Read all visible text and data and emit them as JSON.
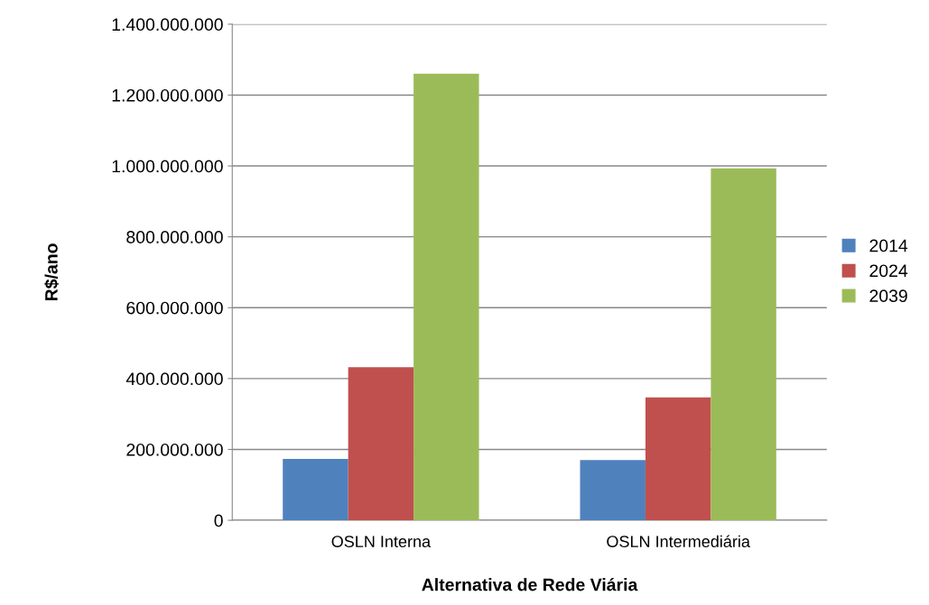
{
  "chart_data": {
    "type": "bar",
    "xlabel": "Alternativa de Rede Viária",
    "ylabel": "R$/ano",
    "categories": [
      "OSLN Interna",
      "OSLN Intermediária"
    ],
    "series": [
      {
        "name": "2014",
        "color": "#4f81bd",
        "values": [
          173000000,
          170000000
        ]
      },
      {
        "name": "2024",
        "color": "#c0504d",
        "values": [
          432000000,
          347000000
        ]
      },
      {
        "name": "2039",
        "color": "#9bbb59",
        "values": [
          1260000000,
          993000000
        ]
      }
    ],
    "ylim": [
      0,
      1400000000
    ],
    "yticks": [
      {
        "value": 0,
        "label": "0"
      },
      {
        "value": 200000000,
        "label": "200.000.000"
      },
      {
        "value": 400000000,
        "label": "400.000.000"
      },
      {
        "value": 600000000,
        "label": "600.000.000"
      },
      {
        "value": 800000000,
        "label": "800.000.000"
      },
      {
        "value": 1000000000,
        "label": "1.000.000.000"
      },
      {
        "value": 1200000000,
        "label": "1.200.000.000"
      },
      {
        "value": 1400000000,
        "label": "1.400.000.000"
      }
    ],
    "grid": "y",
    "legend": "right"
  }
}
